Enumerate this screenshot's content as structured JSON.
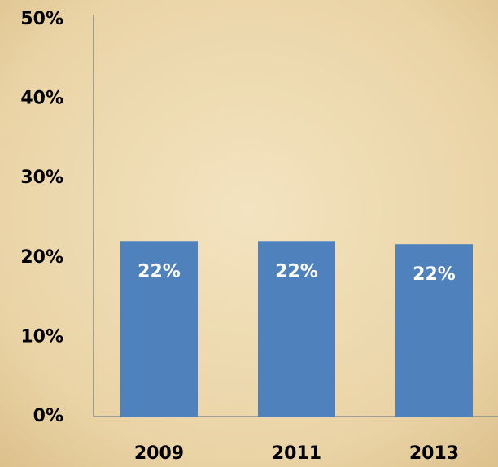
{
  "chart_data": {
    "type": "bar",
    "categories": [
      "2009",
      "2011",
      "2013"
    ],
    "values": [
      22.1,
      22.1,
      21.7
    ],
    "value_labels": [
      "22%",
      "22%",
      "22%"
    ],
    "color": "#4f81bd",
    "ylim": [
      0,
      50
    ],
    "yticks": [
      {
        "value": 0,
        "label": "0%"
      },
      {
        "value": 10,
        "label": "10%"
      },
      {
        "value": 20,
        "label": "20%"
      },
      {
        "value": 30,
        "label": "30%"
      },
      {
        "value": 40,
        "label": "40%"
      },
      {
        "value": 50,
        "label": "50%"
      }
    ],
    "grid": false
  }
}
